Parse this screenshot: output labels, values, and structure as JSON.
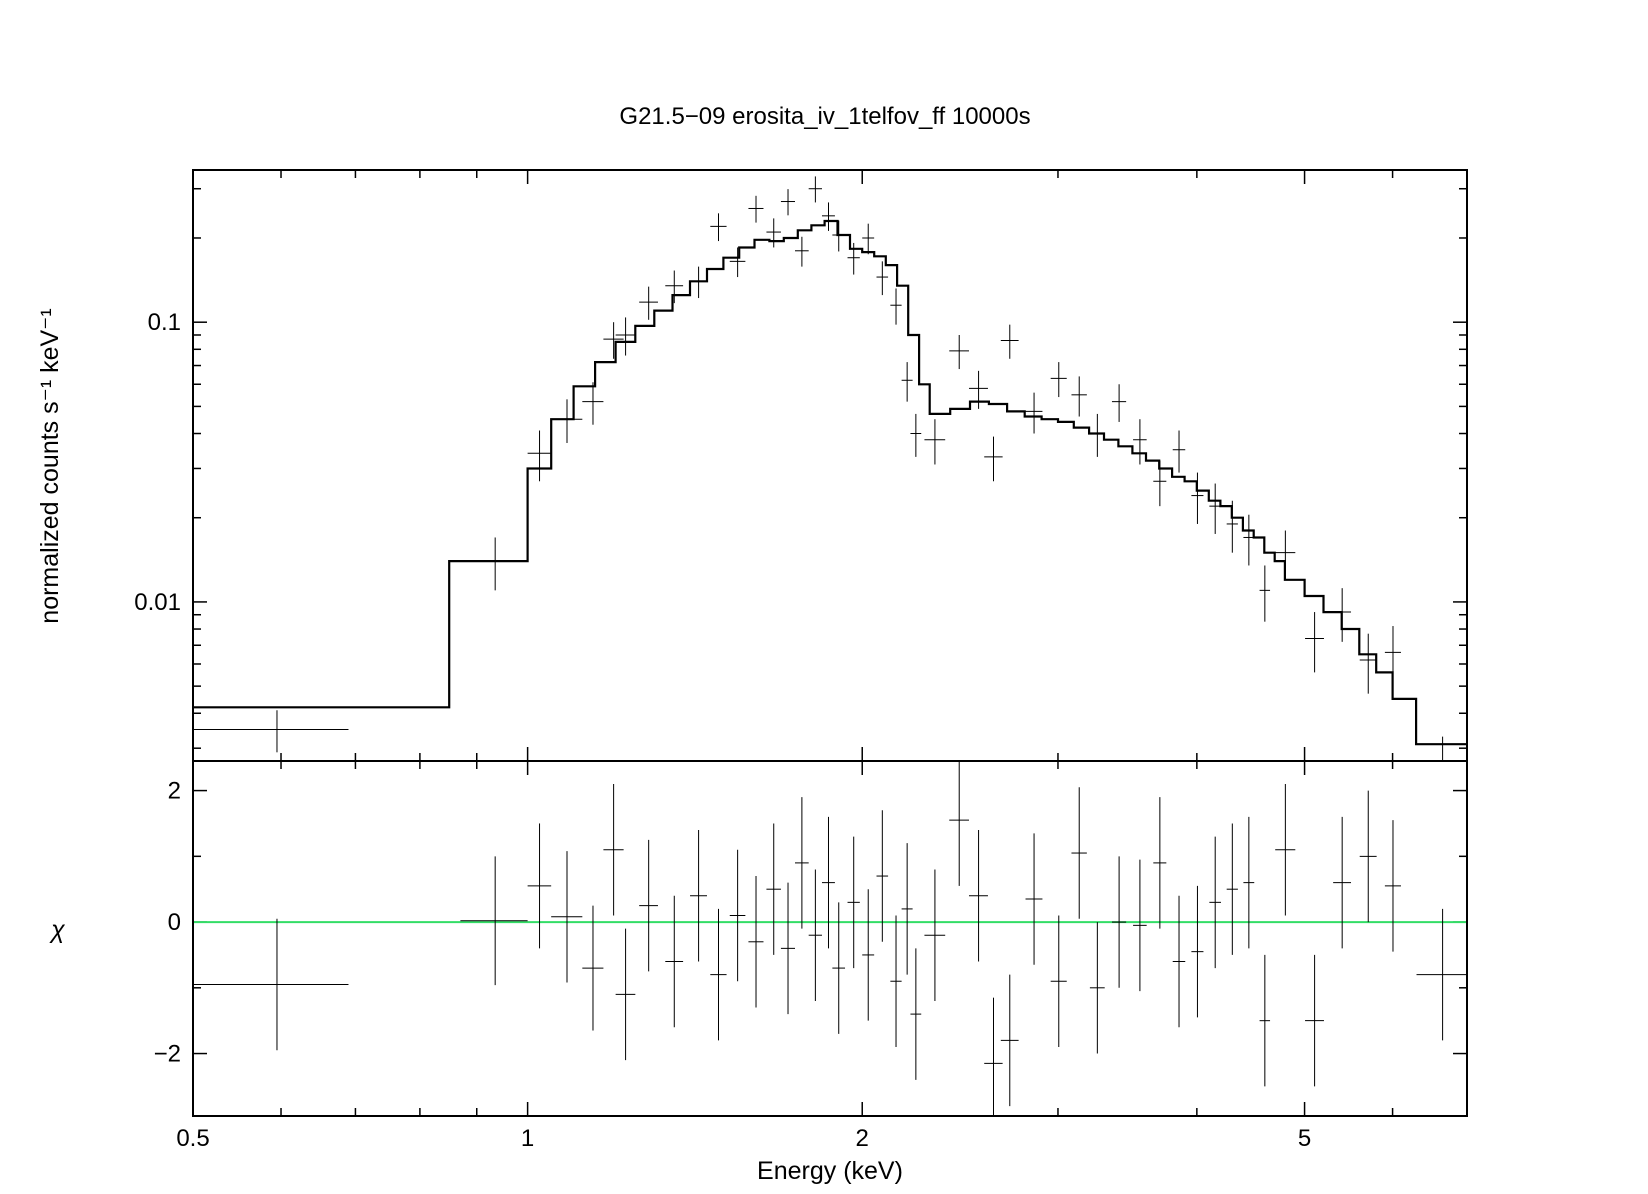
{
  "chart_data": {
    "type": "scatter",
    "title": "G21.5−09 erosita_iv_1telfov_ff 10000s",
    "xlabel": "Energy (keV)",
    "x_scale": "log",
    "xlim": [
      0.5,
      7.0
    ],
    "x_tick_labels": [
      "0.5",
      "1",
      "2",
      "5"
    ],
    "panels": [
      {
        "name": "spectrum",
        "ylabel": "normalized counts s⁻¹ keV⁻¹",
        "y_scale": "log",
        "ylim": [
          0.0027,
          0.35
        ],
        "y_tick_labels": [
          "0.01",
          "0.1"
        ],
        "model": {
          "style": "step",
          "edges": [
            0.5,
            0.85,
            1.0,
            1.05,
            1.1,
            1.15,
            1.2,
            1.25,
            1.3,
            1.35,
            1.4,
            1.45,
            1.5,
            1.55,
            1.6,
            1.65,
            1.7,
            1.75,
            1.8,
            1.85,
            1.9,
            1.95,
            2.0,
            2.05,
            2.1,
            2.15,
            2.2,
            2.25,
            2.3,
            2.4,
            2.5,
            2.6,
            2.7,
            2.8,
            2.9,
            3.0,
            3.1,
            3.2,
            3.3,
            3.4,
            3.5,
            3.6,
            3.7,
            3.8,
            3.9,
            4.0,
            4.1,
            4.2,
            4.3,
            4.4,
            4.5,
            4.6,
            4.7,
            4.8,
            5.0,
            5.2,
            5.4,
            5.6,
            5.8,
            6.0,
            6.3,
            7.0
          ],
          "values": [
            0.0042,
            0.014,
            0.03,
            0.045,
            0.059,
            0.072,
            0.085,
            0.097,
            0.11,
            0.125,
            0.14,
            0.155,
            0.17,
            0.185,
            0.197,
            0.195,
            0.2,
            0.213,
            0.222,
            0.23,
            0.205,
            0.183,
            0.178,
            0.172,
            0.16,
            0.135,
            0.09,
            0.06,
            0.047,
            0.049,
            0.052,
            0.051,
            0.048,
            0.046,
            0.045,
            0.044,
            0.042,
            0.04,
            0.038,
            0.036,
            0.034,
            0.032,
            0.03,
            0.028,
            0.027,
            0.025,
            0.023,
            0.022,
            0.02,
            0.018,
            0.017,
            0.015,
            0.014,
            0.012,
            0.0105,
            0.0092,
            0.008,
            0.0065,
            0.0056,
            0.0045,
            0.0031
          ]
        },
        "data_points": [
          [
            0.595,
            0.095,
            0.0035,
            0.0006
          ],
          [
            0.935,
            0.065,
            0.014,
            0.003
          ],
          [
            1.025,
            0.025,
            0.034,
            0.007
          ],
          [
            1.085,
            0.035,
            0.045,
            0.008
          ],
          [
            1.145,
            0.025,
            0.052,
            0.009
          ],
          [
            1.195,
            0.025,
            0.087,
            0.013
          ],
          [
            1.225,
            0.025,
            0.09,
            0.014
          ],
          [
            1.285,
            0.025,
            0.118,
            0.016
          ],
          [
            1.355,
            0.025,
            0.135,
            0.018
          ],
          [
            1.425,
            0.025,
            0.14,
            0.018
          ],
          [
            1.485,
            0.025,
            0.22,
            0.025
          ],
          [
            1.545,
            0.025,
            0.165,
            0.02
          ],
          [
            1.605,
            0.025,
            0.255,
            0.028
          ],
          [
            1.665,
            0.025,
            0.21,
            0.025
          ],
          [
            1.715,
            0.025,
            0.27,
            0.029
          ],
          [
            1.765,
            0.025,
            0.18,
            0.022
          ],
          [
            1.815,
            0.025,
            0.3,
            0.032
          ],
          [
            1.865,
            0.025,
            0.24,
            0.028
          ],
          [
            1.905,
            0.025,
            0.205,
            0.026
          ],
          [
            1.965,
            0.025,
            0.17,
            0.022
          ],
          [
            2.025,
            0.025,
            0.2,
            0.025
          ],
          [
            2.085,
            0.025,
            0.145,
            0.02
          ],
          [
            2.145,
            0.025,
            0.115,
            0.017
          ],
          [
            2.195,
            0.025,
            0.062,
            0.01
          ],
          [
            2.235,
            0.025,
            0.04,
            0.007
          ],
          [
            2.325,
            0.05,
            0.038,
            0.007
          ],
          [
            2.445,
            0.05,
            0.079,
            0.011
          ],
          [
            2.545,
            0.05,
            0.058,
            0.009
          ],
          [
            2.625,
            0.05,
            0.033,
            0.006
          ],
          [
            2.715,
            0.05,
            0.086,
            0.012
          ],
          [
            2.855,
            0.05,
            0.048,
            0.008
          ],
          [
            3.005,
            0.05,
            0.063,
            0.009
          ],
          [
            3.135,
            0.05,
            0.055,
            0.009
          ],
          [
            3.255,
            0.05,
            0.04,
            0.007
          ],
          [
            3.405,
            0.05,
            0.052,
            0.008
          ],
          [
            3.555,
            0.05,
            0.038,
            0.007
          ],
          [
            3.705,
            0.05,
            0.027,
            0.005
          ],
          [
            3.855,
            0.05,
            0.035,
            0.006
          ],
          [
            4.005,
            0.05,
            0.024,
            0.005
          ],
          [
            4.155,
            0.05,
            0.022,
            0.0045
          ],
          [
            4.305,
            0.05,
            0.019,
            0.004
          ],
          [
            4.455,
            0.05,
            0.017,
            0.0035
          ],
          [
            4.605,
            0.05,
            0.011,
            0.0025
          ],
          [
            4.805,
            0.1,
            0.015,
            0.003
          ],
          [
            5.105,
            0.1,
            0.0074,
            0.0018
          ],
          [
            5.405,
            0.1,
            0.0092,
            0.002
          ],
          [
            5.705,
            0.1,
            0.0062,
            0.0015
          ],
          [
            6.005,
            0.1,
            0.0066,
            0.0016
          ],
          [
            6.655,
            0.35,
            0.0027,
            0.0006
          ]
        ]
      },
      {
        "name": "residuals",
        "ylabel": "χ",
        "ylim": [
          -2.95,
          2.45
        ],
        "y_tick_labels": [
          "−2",
          "0",
          "2"
        ],
        "zero_line_color": "#33dd66",
        "data_points": [
          [
            0.595,
            0.095,
            -0.95,
            1.0
          ],
          [
            0.935,
            0.065,
            0.02,
            0.98
          ],
          [
            1.025,
            0.025,
            0.55,
            0.95
          ],
          [
            1.085,
            0.035,
            0.08,
            1.0
          ],
          [
            1.145,
            0.025,
            -0.7,
            0.95
          ],
          [
            1.195,
            0.025,
            1.1,
            1.0
          ],
          [
            1.225,
            0.025,
            -1.1,
            1.0
          ],
          [
            1.285,
            0.025,
            0.25,
            1.0
          ],
          [
            1.355,
            0.025,
            -0.6,
            1.0
          ],
          [
            1.425,
            0.025,
            0.4,
            1.0
          ],
          [
            1.485,
            0.025,
            -0.8,
            1.0
          ],
          [
            1.545,
            0.025,
            0.1,
            1.0
          ],
          [
            1.605,
            0.025,
            -0.3,
            1.0
          ],
          [
            1.665,
            0.025,
            0.5,
            1.0
          ],
          [
            1.715,
            0.025,
            -0.4,
            1.0
          ],
          [
            1.765,
            0.025,
            0.9,
            1.0
          ],
          [
            1.815,
            0.025,
            -0.2,
            1.0
          ],
          [
            1.865,
            0.025,
            0.6,
            1.0
          ],
          [
            1.905,
            0.025,
            -0.7,
            1.0
          ],
          [
            1.965,
            0.025,
            0.3,
            1.0
          ],
          [
            2.025,
            0.025,
            -0.5,
            1.0
          ],
          [
            2.085,
            0.025,
            0.7,
            1.0
          ],
          [
            2.145,
            0.025,
            -0.9,
            1.0
          ],
          [
            2.195,
            0.025,
            0.2,
            1.0
          ],
          [
            2.235,
            0.025,
            -1.4,
            1.0
          ],
          [
            2.325,
            0.05,
            -0.2,
            1.0
          ],
          [
            2.445,
            0.05,
            1.55,
            1.0
          ],
          [
            2.545,
            0.05,
            0.4,
            1.0
          ],
          [
            2.625,
            0.05,
            -2.15,
            1.0
          ],
          [
            2.715,
            0.05,
            -1.8,
            1.0
          ],
          [
            2.855,
            0.05,
            0.35,
            1.0
          ],
          [
            3.005,
            0.05,
            -0.9,
            1.0
          ],
          [
            3.135,
            0.05,
            1.05,
            1.0
          ],
          [
            3.255,
            0.05,
            -1.0,
            1.0
          ],
          [
            3.405,
            0.05,
            0.0,
            1.0
          ],
          [
            3.555,
            0.05,
            -0.05,
            1.0
          ],
          [
            3.705,
            0.05,
            0.9,
            1.0
          ],
          [
            3.855,
            0.05,
            -0.6,
            1.0
          ],
          [
            4.005,
            0.05,
            -0.45,
            1.0
          ],
          [
            4.155,
            0.05,
            0.3,
            1.0
          ],
          [
            4.305,
            0.05,
            0.5,
            1.0
          ],
          [
            4.455,
            0.05,
            0.6,
            1.0
          ],
          [
            4.605,
            0.05,
            -1.5,
            1.0
          ],
          [
            4.805,
            0.1,
            1.1,
            1.0
          ],
          [
            5.105,
            0.1,
            -1.5,
            1.0
          ],
          [
            5.405,
            0.1,
            0.6,
            1.0
          ],
          [
            5.705,
            0.1,
            1.0,
            1.0
          ],
          [
            6.005,
            0.1,
            0.55,
            1.0
          ],
          [
            6.655,
            0.35,
            -0.8,
            1.0
          ]
        ]
      }
    ]
  }
}
